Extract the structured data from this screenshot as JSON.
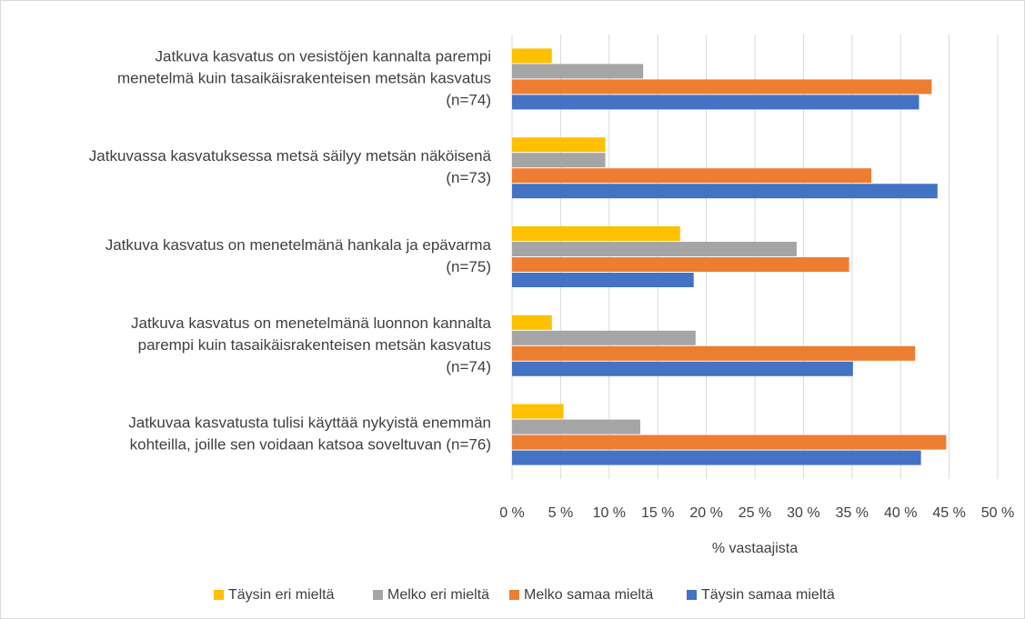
{
  "chart_data": {
    "type": "bar",
    "orientation": "horizontal",
    "categories": [
      [
        "Jatkuva kasvatus on vesistöjen kannalta parempi",
        "menetelmä kuin tasaikäisrakenteisen metsän kasvatus",
        "(n=74)"
      ],
      [
        "Jatkuvassa kasvatuksessa metsä säilyy metsän näköisenä",
        "(n=73)"
      ],
      [
        "Jatkuva kasvatus on menetelmänä hankala ja epävarma",
        "(n=75)"
      ],
      [
        "Jatkuva kasvatus on menetelmänä luonnon kannalta",
        "parempi kuin tasaikäisrakenteisen metsän kasvatus",
        "(n=74)"
      ],
      [
        "Jatkuvaa kasvatusta tulisi käyttää nykyistä enemmän",
        "kohteilla, joille sen voidaan katsoa soveltuvan (n=76)"
      ]
    ],
    "series": [
      {
        "name": "Täysin eri mieltä",
        "color": "#ffc000",
        "values": [
          4.1,
          9.6,
          17.3,
          4.1,
          5.3
        ]
      },
      {
        "name": "Melko eri mieltä",
        "color": "#a5a5a5",
        "values": [
          13.5,
          9.6,
          29.3,
          18.9,
          13.2
        ]
      },
      {
        "name": "Melko samaa mieltä",
        "color": "#ed7d31",
        "values": [
          43.2,
          37.0,
          34.7,
          41.5,
          44.7
        ]
      },
      {
        "name": "Täysin samaa mieltä",
        "color": "#4472c4",
        "values": [
          41.9,
          43.8,
          18.7,
          35.1,
          42.1
        ]
      }
    ],
    "x_label": "% vastaajista",
    "xlim": [
      0,
      50
    ],
    "xticks": [
      {
        "value": 0,
        "label": "0 %"
      },
      {
        "value": 5,
        "label": "5 %"
      },
      {
        "value": 10,
        "label": "10 %"
      },
      {
        "value": 15,
        "label": "15 %"
      },
      {
        "value": 20,
        "label": "20 %"
      },
      {
        "value": 25,
        "label": "25 %"
      },
      {
        "value": 30,
        "label": "30 %"
      },
      {
        "value": 35,
        "label": "35 %"
      },
      {
        "value": 40,
        "label": "40 %"
      },
      {
        "value": 45,
        "label": "45 %"
      },
      {
        "value": 50,
        "label": "50 %"
      }
    ],
    "grid": true,
    "legend": "bottom"
  }
}
